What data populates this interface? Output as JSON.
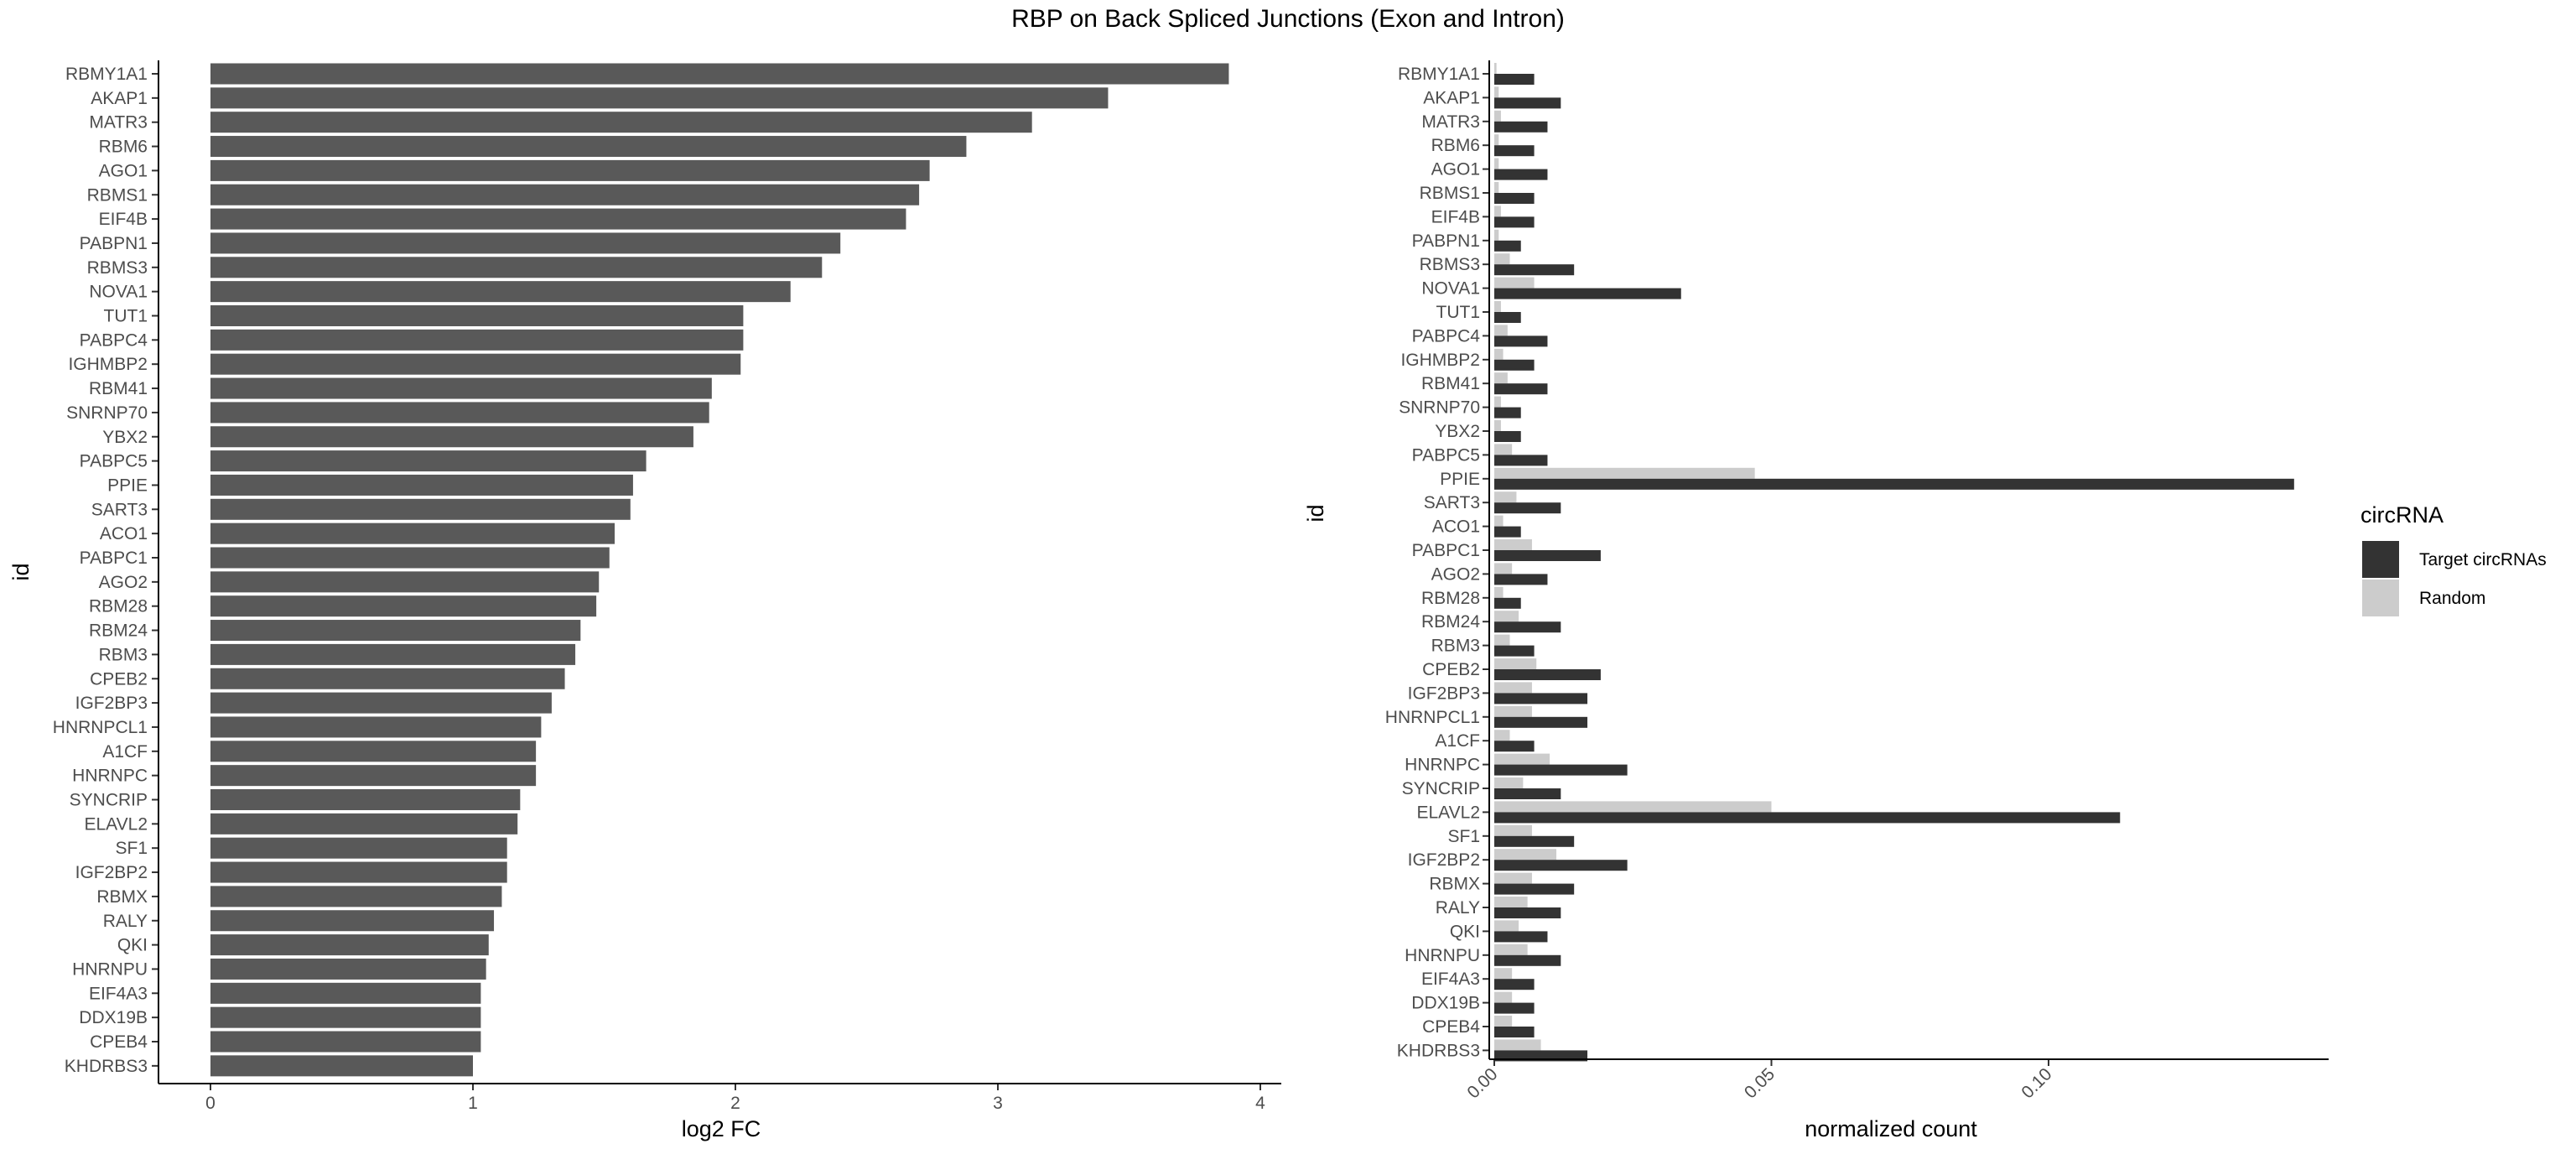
{
  "title": "RBP on Back Spliced Junctions (Exon and Intron)",
  "chart_data": [
    {
      "type": "bar",
      "orientation": "horizontal",
      "categories": [
        "RBMY1A1",
        "AKAP1",
        "MATR3",
        "RBM6",
        "AGO1",
        "RBMS1",
        "EIF4B",
        "PABPN1",
        "RBMS3",
        "NOVA1",
        "TUT1",
        "PABPC4",
        "IGHMBP2",
        "RBM41",
        "SNRNP70",
        "YBX2",
        "PABPC5",
        "PPIE",
        "SART3",
        "ACO1",
        "PABPC1",
        "AGO2",
        "RBM28",
        "RBM24",
        "RBM3",
        "CPEB2",
        "IGF2BP3",
        "HNRNPCL1",
        "A1CF",
        "HNRNPC",
        "SYNCRIP",
        "ELAVL2",
        "SF1",
        "IGF2BP2",
        "RBMX",
        "RALY",
        "QKI",
        "HNRNPU",
        "EIF4A3",
        "DDX19B",
        "CPEB4",
        "KHDRBS3"
      ],
      "values": [
        3.88,
        3.42,
        3.13,
        2.88,
        2.74,
        2.7,
        2.65,
        2.4,
        2.33,
        2.21,
        2.03,
        2.03,
        2.02,
        1.91,
        1.9,
        1.84,
        1.66,
        1.61,
        1.6,
        1.54,
        1.52,
        1.48,
        1.47,
        1.41,
        1.39,
        1.35,
        1.3,
        1.26,
        1.24,
        1.24,
        1.18,
        1.17,
        1.13,
        1.13,
        1.11,
        1.08,
        1.06,
        1.05,
        1.03,
        1.03,
        1.03,
        1.0
      ],
      "xlabel": "log2 FC",
      "ylabel": "id",
      "xlim": [
        0,
        4.1
      ],
      "xticks": [
        "0",
        "1",
        "2",
        "3",
        "4"
      ],
      "bar_color": "#595959",
      "grid": false
    },
    {
      "type": "bar",
      "orientation": "horizontal",
      "grouped": true,
      "categories": [
        "RBMY1A1",
        "AKAP1",
        "MATR3",
        "RBM6",
        "AGO1",
        "RBMS1",
        "EIF4B",
        "PABPN1",
        "RBMS3",
        "NOVA1",
        "TUT1",
        "PABPC4",
        "IGHMBP2",
        "RBM41",
        "SNRNP70",
        "YBX2",
        "PABPC5",
        "PPIE",
        "SART3",
        "ACO1",
        "PABPC1",
        "AGO2",
        "RBM28",
        "RBM24",
        "RBM3",
        "CPEB2",
        "IGF2BP3",
        "HNRNPCL1",
        "A1CF",
        "HNRNPC",
        "SYNCRIP",
        "ELAVL2",
        "SF1",
        "IGF2BP2",
        "RBMX",
        "RALY",
        "QKI",
        "HNRNPU",
        "EIF4A3",
        "DDX19B",
        "CPEB4",
        "KHDRBS3"
      ],
      "series": [
        {
          "name": "Target circRNAs",
          "color": "#333333",
          "values": [
            0.0072,
            0.012,
            0.0096,
            0.0072,
            0.0096,
            0.0072,
            0.0072,
            0.0048,
            0.0144,
            0.0337,
            0.0048,
            0.0096,
            0.0072,
            0.0096,
            0.0048,
            0.0048,
            0.0096,
            0.1443,
            0.012,
            0.0048,
            0.0192,
            0.0096,
            0.0048,
            0.012,
            0.0072,
            0.0192,
            0.0168,
            0.0168,
            0.0072,
            0.024,
            0.012,
            0.1129,
            0.0144,
            0.024,
            0.0144,
            0.012,
            0.0096,
            0.012,
            0.0072,
            0.0072,
            0.0072,
            0.0168
          ]
        },
        {
          "name": "Random",
          "color": "#cccccc",
          "values": [
            0.0004,
            0.0008,
            0.0012,
            0.0008,
            0.0008,
            0.0008,
            0.0012,
            0.0008,
            0.0028,
            0.0072,
            0.0012,
            0.0024,
            0.0016,
            0.0024,
            0.0012,
            0.0012,
            0.0032,
            0.047,
            0.004,
            0.0016,
            0.0068,
            0.0032,
            0.0016,
            0.0044,
            0.0028,
            0.0076,
            0.0068,
            0.0068,
            0.0028,
            0.01,
            0.0052,
            0.05,
            0.0068,
            0.0112,
            0.0068,
            0.006,
            0.0044,
            0.006,
            0.0032,
            0.0032,
            0.0032,
            0.0084
          ]
        }
      ],
      "xlabel": "normalized count",
      "ylabel": "id",
      "xlim": [
        0,
        0.151
      ],
      "xticks": [
        "0.00",
        "0.05",
        "0.10"
      ],
      "legend": {
        "title": "circRNA",
        "position": "right",
        "entries": [
          "Target circRNAs",
          "Random"
        ]
      },
      "grid": false
    }
  ]
}
